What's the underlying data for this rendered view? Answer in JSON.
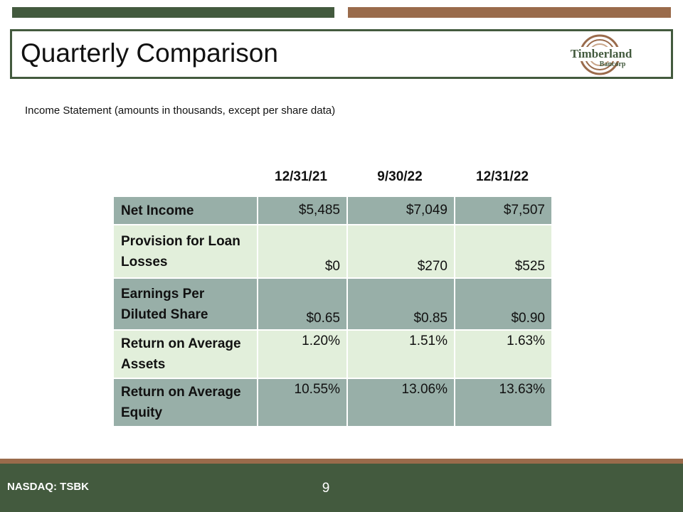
{
  "header": {
    "title": "Quarterly Comparison",
    "logo": {
      "name": "Timberland",
      "sub": "Bancorp"
    }
  },
  "subtitle": "Income Statement (amounts in thousands, except per share data)",
  "table": {
    "columns": [
      "12/31/21",
      "9/30/22",
      "12/31/22"
    ],
    "rows": [
      [
        "Net Income",
        "$5,485",
        "$7,049",
        "$7,507"
      ],
      [
        "Provision for Loan Losses",
        "$0",
        "$270",
        "$525"
      ],
      [
        "Earnings Per Diluted Share",
        "$0.65",
        "$0.85",
        "$0.90"
      ],
      [
        "Return on Average Assets",
        "1.20%",
        "1.51%",
        "1.63%"
      ],
      [
        "Return on Average Equity",
        "10.55%",
        "13.06%",
        "13.63%"
      ]
    ]
  },
  "footer": {
    "ticker": "NASDAQ: TSBK",
    "page": "9"
  }
}
